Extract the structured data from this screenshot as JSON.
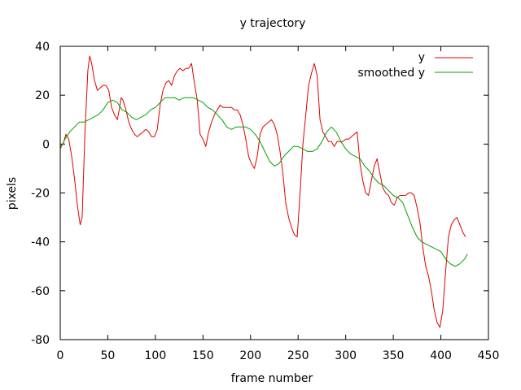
{
  "chart_data": {
    "type": "line",
    "title": "y trajectory",
    "xlabel": "frame number",
    "ylabel": "pixels",
    "xlim": [
      0,
      450
    ],
    "ylim": [
      -80,
      40
    ],
    "x_ticks": [
      0,
      50,
      100,
      150,
      200,
      250,
      300,
      350,
      400,
      450
    ],
    "y_ticks": [
      -80,
      -60,
      -40,
      -20,
      0,
      20,
      40
    ],
    "grid": false,
    "legend_position": "top-right",
    "series": [
      {
        "name": "y",
        "color": "#e00000",
        "points": [
          [
            0,
            -1
          ],
          [
            3,
            0
          ],
          [
            6,
            4
          ],
          [
            9,
            2
          ],
          [
            12,
            -5
          ],
          [
            15,
            -14
          ],
          [
            18,
            -25
          ],
          [
            21,
            -33
          ],
          [
            23,
            -30
          ],
          [
            26,
            5
          ],
          [
            29,
            30
          ],
          [
            31,
            36
          ],
          [
            33,
            33
          ],
          [
            36,
            26
          ],
          [
            39,
            22
          ],
          [
            42,
            23
          ],
          [
            45,
            24
          ],
          [
            48,
            24
          ],
          [
            51,
            22
          ],
          [
            54,
            15
          ],
          [
            57,
            12
          ],
          [
            60,
            10
          ],
          [
            62,
            14
          ],
          [
            64,
            19
          ],
          [
            66,
            18
          ],
          [
            69,
            14
          ],
          [
            72,
            9
          ],
          [
            75,
            6
          ],
          [
            78,
            4
          ],
          [
            81,
            3
          ],
          [
            84,
            4
          ],
          [
            87,
            5
          ],
          [
            90,
            6
          ],
          [
            93,
            5
          ],
          [
            96,
            3
          ],
          [
            99,
            3
          ],
          [
            102,
            6
          ],
          [
            105,
            16
          ],
          [
            108,
            22
          ],
          [
            111,
            25
          ],
          [
            114,
            26
          ],
          [
            117,
            24
          ],
          [
            120,
            28
          ],
          [
            123,
            30
          ],
          [
            126,
            31
          ],
          [
            129,
            30
          ],
          [
            132,
            31
          ],
          [
            135,
            31
          ],
          [
            138,
            33
          ],
          [
            141,
            25
          ],
          [
            144,
            18
          ],
          [
            147,
            4
          ],
          [
            150,
            2
          ],
          [
            153,
            -1
          ],
          [
            156,
            5
          ],
          [
            159,
            9
          ],
          [
            162,
            12
          ],
          [
            165,
            14
          ],
          [
            168,
            16
          ],
          [
            171,
            15
          ],
          [
            174,
            15
          ],
          [
            177,
            15
          ],
          [
            180,
            15
          ],
          [
            183,
            14
          ],
          [
            186,
            14
          ],
          [
            189,
            12
          ],
          [
            192,
            8
          ],
          [
            195,
            2
          ],
          [
            198,
            -5
          ],
          [
            201,
            -8
          ],
          [
            204,
            -10
          ],
          [
            207,
            -5
          ],
          [
            210,
            4
          ],
          [
            213,
            7
          ],
          [
            216,
            8
          ],
          [
            219,
            9
          ],
          [
            222,
            10
          ],
          [
            225,
            8
          ],
          [
            228,
            4
          ],
          [
            231,
            -3
          ],
          [
            234,
            -12
          ],
          [
            237,
            -24
          ],
          [
            240,
            -30
          ],
          [
            243,
            -34
          ],
          [
            246,
            -37
          ],
          [
            249,
            -38
          ],
          [
            252,
            -20
          ],
          [
            255,
            0
          ],
          [
            258,
            12
          ],
          [
            261,
            24
          ],
          [
            264,
            29
          ],
          [
            267,
            33
          ],
          [
            270,
            28
          ],
          [
            273,
            10
          ],
          [
            276,
            5
          ],
          [
            279,
            3
          ],
          [
            282,
            1
          ],
          [
            285,
            1
          ],
          [
            288,
            -1
          ],
          [
            291,
            1
          ],
          [
            294,
            1
          ],
          [
            297,
            1
          ],
          [
            300,
            2
          ],
          [
            303,
            2
          ],
          [
            306,
            3
          ],
          [
            309,
            4
          ],
          [
            312,
            5
          ],
          [
            315,
            -8
          ],
          [
            318,
            -15
          ],
          [
            321,
            -20
          ],
          [
            324,
            -21
          ],
          [
            327,
            -15
          ],
          [
            330,
            -9
          ],
          [
            333,
            -6
          ],
          [
            336,
            -12
          ],
          [
            339,
            -18
          ],
          [
            342,
            -20
          ],
          [
            345,
            -21
          ],
          [
            348,
            -24
          ],
          [
            351,
            -25
          ],
          [
            354,
            -22
          ],
          [
            357,
            -21
          ],
          [
            360,
            -21
          ],
          [
            363,
            -21
          ],
          [
            366,
            -20
          ],
          [
            369,
            -20
          ],
          [
            372,
            -21
          ],
          [
            375,
            -26
          ],
          [
            378,
            -32
          ],
          [
            381,
            -42
          ],
          [
            384,
            -50
          ],
          [
            387,
            -54
          ],
          [
            390,
            -60
          ],
          [
            393,
            -68
          ],
          [
            396,
            -73
          ],
          [
            399,
            -75
          ],
          [
            402,
            -68
          ],
          [
            405,
            -52
          ],
          [
            408,
            -38
          ],
          [
            411,
            -33
          ],
          [
            414,
            -31
          ],
          [
            417,
            -30
          ],
          [
            420,
            -33
          ],
          [
            423,
            -36
          ],
          [
            426,
            -38
          ]
        ]
      },
      {
        "name": "smoothed y",
        "color": "#00a000",
        "points": [
          [
            0,
            -2
          ],
          [
            5,
            2
          ],
          [
            10,
            5
          ],
          [
            15,
            7
          ],
          [
            20,
            9
          ],
          [
            25,
            9
          ],
          [
            30,
            10
          ],
          [
            35,
            11
          ],
          [
            40,
            12
          ],
          [
            45,
            14
          ],
          [
            50,
            17
          ],
          [
            55,
            18
          ],
          [
            60,
            17
          ],
          [
            65,
            14
          ],
          [
            70,
            13
          ],
          [
            75,
            11
          ],
          [
            80,
            10
          ],
          [
            85,
            11
          ],
          [
            90,
            12
          ],
          [
            95,
            14
          ],
          [
            100,
            15
          ],
          [
            105,
            17
          ],
          [
            110,
            19
          ],
          [
            115,
            19
          ],
          [
            120,
            19
          ],
          [
            125,
            18
          ],
          [
            130,
            19
          ],
          [
            135,
            19
          ],
          [
            140,
            19
          ],
          [
            145,
            18
          ],
          [
            150,
            17
          ],
          [
            155,
            15
          ],
          [
            160,
            14
          ],
          [
            165,
            12
          ],
          [
            170,
            10
          ],
          [
            175,
            7
          ],
          [
            180,
            6
          ],
          [
            185,
            7
          ],
          [
            190,
            7
          ],
          [
            195,
            7
          ],
          [
            200,
            6
          ],
          [
            205,
            4
          ],
          [
            210,
            1
          ],
          [
            215,
            -3
          ],
          [
            220,
            -7
          ],
          [
            225,
            -9
          ],
          [
            230,
            -8
          ],
          [
            235,
            -5
          ],
          [
            240,
            -3
          ],
          [
            245,
            -1
          ],
          [
            250,
            -1
          ],
          [
            255,
            -2
          ],
          [
            260,
            -3
          ],
          [
            265,
            -3
          ],
          [
            270,
            -2
          ],
          [
            275,
            1
          ],
          [
            280,
            5
          ],
          [
            285,
            7
          ],
          [
            290,
            5
          ],
          [
            295,
            1
          ],
          [
            300,
            -2
          ],
          [
            305,
            -4
          ],
          [
            310,
            -5
          ],
          [
            315,
            -6
          ],
          [
            320,
            -9
          ],
          [
            325,
            -11
          ],
          [
            330,
            -14
          ],
          [
            335,
            -16
          ],
          [
            340,
            -17
          ],
          [
            345,
            -19
          ],
          [
            350,
            -21
          ],
          [
            355,
            -22
          ],
          [
            360,
            -24
          ],
          [
            365,
            -29
          ],
          [
            370,
            -34
          ],
          [
            375,
            -38
          ],
          [
            380,
            -40
          ],
          [
            385,
            -41
          ],
          [
            390,
            -42
          ],
          [
            395,
            -43
          ],
          [
            400,
            -44
          ],
          [
            405,
            -47
          ],
          [
            410,
            -49
          ],
          [
            415,
            -50
          ],
          [
            420,
            -49
          ],
          [
            425,
            -47
          ],
          [
            428,
            -45
          ]
        ]
      }
    ]
  }
}
